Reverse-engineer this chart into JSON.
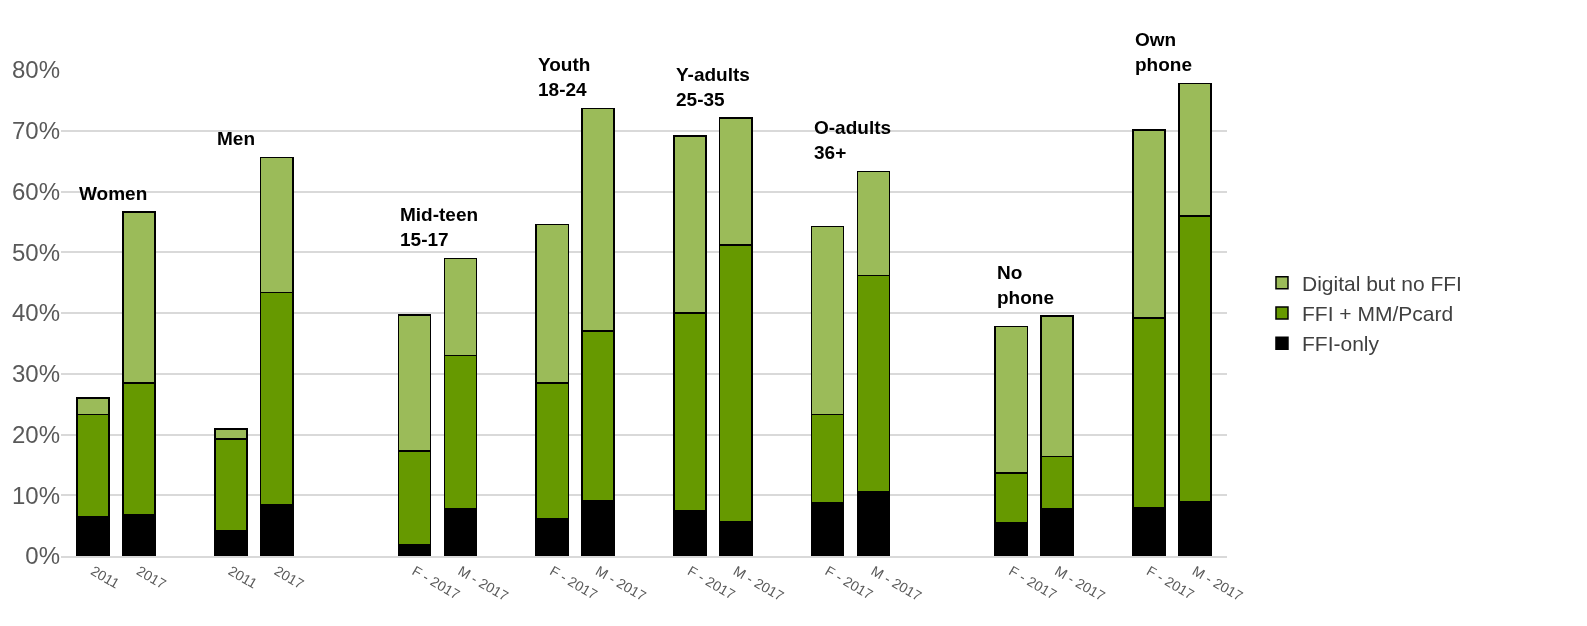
{
  "chart_data": {
    "type": "bar",
    "stacked": true,
    "categories": [
      "2011",
      "2017",
      null,
      "2011",
      "2017",
      null,
      null,
      "F - 2017",
      "M - 2017",
      null,
      "F - 2017",
      "M - 2017",
      null,
      "F - 2017",
      "M - 2017",
      null,
      "F - 2017",
      "M - 2017",
      null,
      null,
      "F - 2017",
      "M - 2017",
      null,
      "F - 2017",
      "M - 2017"
    ],
    "series": [
      {
        "name": "FFI-only",
        "color": "#000000",
        "values": [
          6.5,
          6.8,
          null,
          4.2,
          8.4,
          null,
          null,
          1.9,
          7.7,
          null,
          6.2,
          9.1,
          null,
          7.4,
          5.7,
          null,
          8.7,
          10.5,
          null,
          null,
          5.4,
          7.7,
          null,
          7.9,
          8.9
        ]
      },
      {
        "name": "FFI + MM/Pcard",
        "color": "#669900",
        "values": [
          16.8,
          21.7,
          null,
          15.1,
          35.0,
          null,
          null,
          15.4,
          25.3,
          null,
          22.3,
          27.9,
          null,
          32.6,
          45.5,
          null,
          14.6,
          35.7,
          null,
          null,
          8.3,
          8.7,
          null,
          31.3,
          47.1
        ]
      },
      {
        "name": "Digital but no FFI",
        "color": "#9bbb59",
        "values": [
          2.7,
          28.1,
          null,
          1.6,
          22.2,
          null,
          null,
          22.4,
          16.0,
          null,
          26.1,
          36.7,
          null,
          29.1,
          20.9,
          null,
          30.9,
          17.1,
          null,
          null,
          24.1,
          23.1,
          null,
          30.9,
          21.8
        ]
      }
    ],
    "ylim": [
      0,
      80
    ],
    "yticks": [
      {
        "value": 0,
        "label": "0%"
      },
      {
        "value": 10,
        "label": "10%"
      },
      {
        "value": 20,
        "label": "20%"
      },
      {
        "value": 30,
        "label": "30%"
      },
      {
        "value": 40,
        "label": "40%"
      },
      {
        "value": 50,
        "label": "50%"
      },
      {
        "value": 60,
        "label": "60%"
      },
      {
        "value": 70,
        "label": "70%"
      },
      {
        "value": 80,
        "label": "80%"
      }
    ],
    "grid": "y",
    "legend": "right",
    "annotations": [
      "Women",
      "Men",
      "Mid-teen\n15-17",
      "Youth\n18-24",
      "Y-adults\n25-35",
      "O-adults\n36+",
      "No\nphone",
      "Own\nphone"
    ]
  }
}
